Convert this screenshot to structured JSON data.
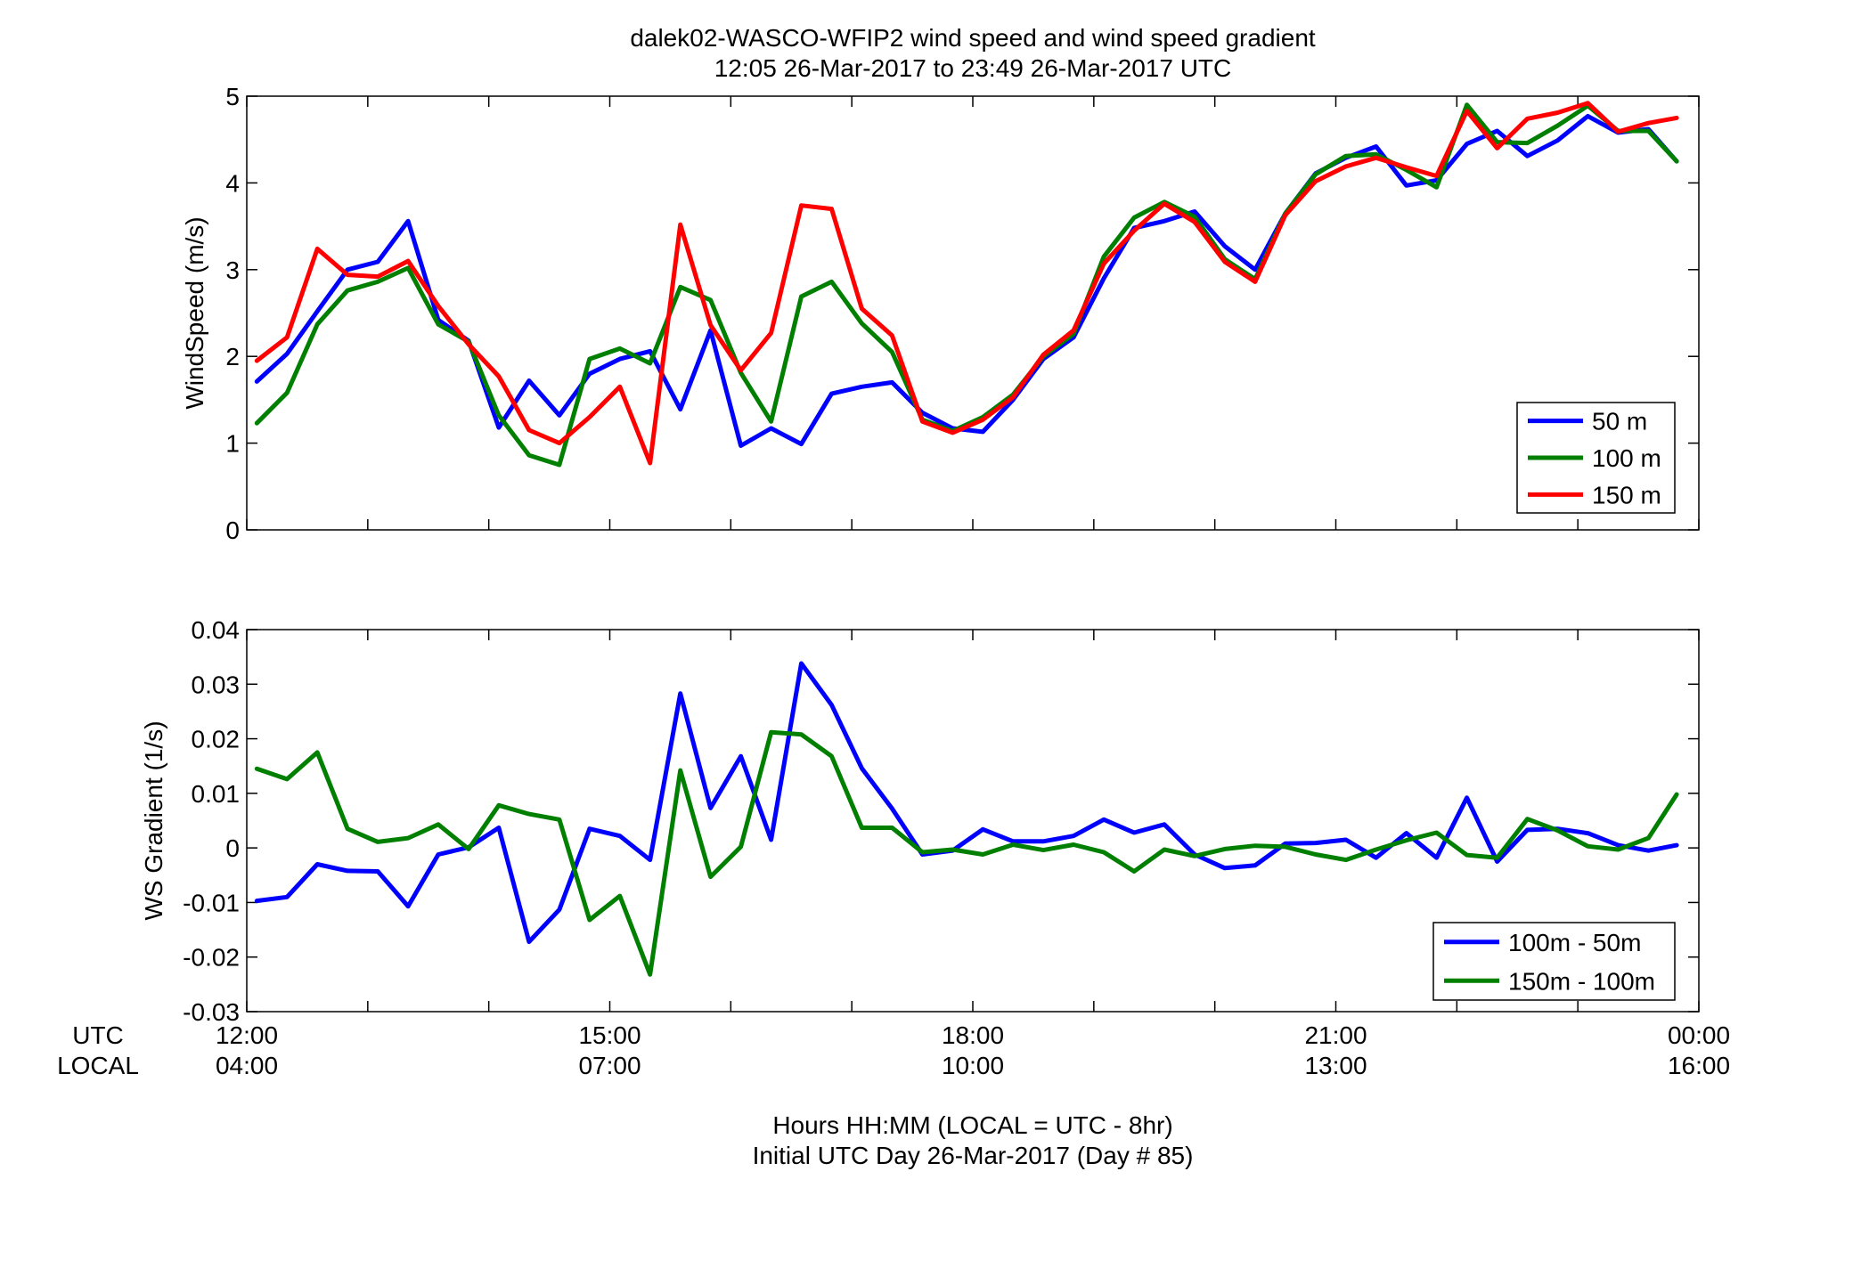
{
  "figure": {
    "title_line1": "dalek02-WASCO-WFIP2  wind speed and wind speed gradient",
    "title_line2": "12:05 26-Mar-2017 to 23:49 26-Mar-2017  UTC",
    "row_label_utc": "UTC",
    "row_label_local": "LOCAL",
    "xlabel_line1": "Hours HH:MM  (LOCAL = UTC - 8hr)",
    "xlabel_line2": "Initial UTC Day 26-Mar-2017 (Day # 85)",
    "utc_tick_labels": [
      "12:00",
      "15:00",
      "18:00",
      "21:00",
      "00:00"
    ],
    "local_tick_labels": [
      "04:00",
      "07:00",
      "10:00",
      "13:00",
      "16:00"
    ],
    "utc_tick_hours": [
      12,
      15,
      18,
      21,
      24
    ],
    "xlim_hours": [
      12,
      24
    ]
  },
  "colors": {
    "blue": "#0000ff",
    "green": "#007f00",
    "red": "#ff0000"
  },
  "chart_data": [
    {
      "type": "line",
      "ylabel": "WindSpeed (m/s)",
      "ylim": [
        0,
        5
      ],
      "yticks": [
        0,
        1,
        2,
        3,
        4,
        5
      ],
      "ytick_labels": [
        "0",
        "1",
        "2",
        "3",
        "4",
        "5"
      ],
      "grid": false,
      "legend_position": "bottom-right",
      "x_hours": [
        12.083,
        12.333,
        12.583,
        12.833,
        13.083,
        13.333,
        13.583,
        13.833,
        14.083,
        14.333,
        14.583,
        14.833,
        15.083,
        15.333,
        15.583,
        15.833,
        16.083,
        16.333,
        16.583,
        16.833,
        17.083,
        17.333,
        17.583,
        17.833,
        18.083,
        18.333,
        18.583,
        18.833,
        19.083,
        19.333,
        19.583,
        19.833,
        20.083,
        20.333,
        20.583,
        20.833,
        21.083,
        21.333,
        21.583,
        21.833,
        22.083,
        22.333,
        22.583,
        22.833,
        23.083,
        23.333,
        23.583,
        23.817
      ],
      "series": [
        {
          "name": "50 m",
          "color": "blue",
          "values": [
            1.71,
            2.03,
            2.52,
            3.0,
            3.09,
            3.56,
            2.42,
            2.18,
            1.18,
            1.72,
            1.32,
            1.8,
            1.97,
            2.06,
            1.39,
            2.3,
            0.97,
            1.17,
            0.99,
            1.57,
            1.65,
            1.7,
            1.35,
            1.17,
            1.13,
            1.5,
            1.97,
            2.22,
            2.9,
            3.48,
            3.56,
            3.67,
            3.27,
            3.0,
            3.65,
            4.11,
            4.29,
            4.42,
            3.97,
            4.03,
            4.45,
            4.6,
            4.31,
            4.49,
            4.77,
            4.58,
            4.62,
            4.25
          ]
        },
        {
          "name": "100 m",
          "color": "green",
          "values": [
            1.23,
            1.58,
            2.37,
            2.76,
            2.86,
            3.02,
            2.37,
            2.17,
            1.32,
            0.86,
            0.75,
            1.97,
            2.09,
            1.92,
            2.8,
            2.65,
            1.81,
            1.25,
            2.69,
            2.86,
            2.38,
            2.05,
            1.27,
            1.14,
            1.3,
            1.56,
            2.0,
            2.26,
            3.15,
            3.6,
            3.78,
            3.61,
            3.12,
            2.89,
            3.65,
            4.1,
            4.31,
            4.33,
            4.15,
            3.95,
            4.9,
            4.47,
            4.46,
            4.66,
            4.89,
            4.6,
            4.6,
            4.25
          ]
        },
        {
          "name": "150 m",
          "color": "red",
          "values": [
            1.95,
            2.22,
            3.24,
            2.94,
            2.92,
            3.1,
            2.58,
            2.14,
            1.77,
            1.15,
            1.0,
            1.3,
            1.65,
            0.77,
            3.52,
            2.36,
            1.84,
            2.27,
            3.74,
            3.7,
            2.55,
            2.24,
            1.25,
            1.12,
            1.27,
            1.53,
            2.02,
            2.3,
            3.07,
            3.45,
            3.76,
            3.55,
            3.09,
            2.86,
            3.63,
            4.02,
            4.19,
            4.29,
            4.18,
            4.08,
            4.83,
            4.4,
            4.74,
            4.81,
            4.92,
            4.59,
            4.69,
            4.75
          ]
        }
      ]
    },
    {
      "type": "line",
      "ylabel": "WS Gradient (1/s)",
      "ylim": [
        -0.03,
        0.04
      ],
      "yticks": [
        -0.03,
        -0.02,
        -0.01,
        0,
        0.01,
        0.02,
        0.03,
        0.04
      ],
      "ytick_labels": [
        "-0.03",
        "-0.02",
        "-0.01",
        "0",
        "0.01",
        "0.02",
        "0.03",
        "0.04"
      ],
      "grid": false,
      "legend_position": "bottom-right",
      "x_hours": [
        12.083,
        12.333,
        12.583,
        12.833,
        13.083,
        13.333,
        13.583,
        13.833,
        14.083,
        14.333,
        14.583,
        14.833,
        15.083,
        15.333,
        15.583,
        15.833,
        16.083,
        16.333,
        16.583,
        16.833,
        17.083,
        17.333,
        17.583,
        17.833,
        18.083,
        18.333,
        18.583,
        18.833,
        19.083,
        19.333,
        19.583,
        19.833,
        20.083,
        20.333,
        20.583,
        20.833,
        21.083,
        21.333,
        21.583,
        21.833,
        22.083,
        22.333,
        22.583,
        22.833,
        23.083,
        23.333,
        23.583,
        23.817
      ],
      "series": [
        {
          "name": "100m - 50m",
          "color": "blue",
          "values": [
            -0.0097,
            -0.009,
            -0.003,
            -0.0042,
            -0.0043,
            -0.0107,
            -0.0012,
            0.0001,
            0.0037,
            -0.0172,
            -0.0113,
            0.0035,
            0.0022,
            -0.0022,
            0.0283,
            0.0073,
            0.0168,
            0.0015,
            0.0338,
            0.0262,
            0.0146,
            0.0072,
            -0.0012,
            -0.0005,
            0.0034,
            0.0012,
            0.0012,
            0.0022,
            0.0052,
            0.0028,
            0.0043,
            -0.0012,
            -0.0037,
            -0.0032,
            0.0008,
            0.0009,
            0.0015,
            -0.0018,
            0.0027,
            -0.0018,
            0.0092,
            -0.0025,
            0.0033,
            0.0035,
            0.0027,
            0.0005,
            -0.0005,
            0.0005
          ]
        },
        {
          "name": "150m - 100m",
          "color": "green",
          "values": [
            0.0145,
            0.0126,
            0.0175,
            0.0035,
            0.0011,
            0.0018,
            0.0043,
            -0.0002,
            0.0078,
            0.0062,
            0.0052,
            -0.0132,
            -0.0088,
            -0.0232,
            0.0142,
            -0.0053,
            0.0002,
            0.0212,
            0.0208,
            0.0168,
            0.0037,
            0.0037,
            -0.0008,
            -0.0003,
            -0.0012,
            0.0006,
            -0.0004,
            0.0006,
            -0.0008,
            -0.0043,
            -0.0003,
            -0.0015,
            -0.0002,
            0.0004,
            0.0002,
            -0.0012,
            -0.0022,
            -0.0003,
            0.0014,
            0.0028,
            -0.0013,
            -0.0018,
            0.0053,
            0.0032,
            0.0003,
            -0.0003,
            0.0018,
            0.0098
          ]
        }
      ]
    }
  ]
}
